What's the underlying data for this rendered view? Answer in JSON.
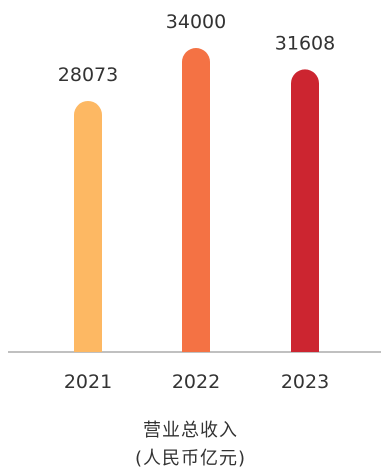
{
  "chart_data": {
    "type": "bar",
    "categories": [
      "2021",
      "2022",
      "2023"
    ],
    "values": [
      28073,
      34000,
      31608
    ],
    "value_labels": [
      "28073",
      "34000",
      "31608"
    ],
    "colors": [
      "#FDB863",
      "#F47244",
      "#CC2530"
    ],
    "title": "",
    "xlabel": [
      "营业总收入",
      "(人民币亿元)"
    ],
    "ylabel": "",
    "ylim": [
      0,
      34000
    ],
    "grid": false,
    "legend": false
  },
  "axis_color": "#9a9a9a"
}
